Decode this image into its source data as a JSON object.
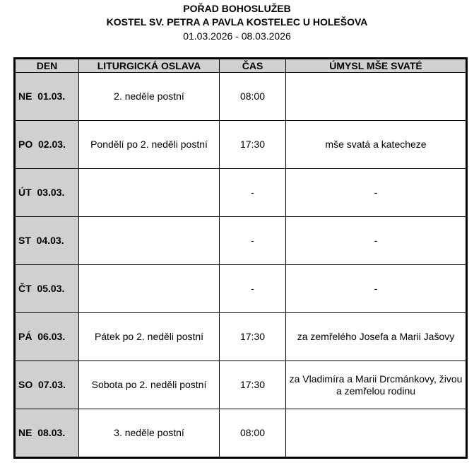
{
  "header": {
    "title": "POŘAD BOHOSLUŽEB",
    "church": "KOSTEL SV. PETRA A PAVLA KOSTELEC U HOLEŠOVA",
    "range": "01.03.2026 - 08.03.2026"
  },
  "table": {
    "columns": [
      "DEN",
      "LITURGICKÁ OSLAVA",
      "ČAS",
      "ÚMYSL MŠE SVATÉ"
    ],
    "rows": [
      {
        "day": "NE  01.03.",
        "celebration": "2. neděle postní",
        "time": "08:00",
        "intention": ""
      },
      {
        "day": "PO  02.03.",
        "celebration": "Pondělí po 2. neděli postní",
        "time": "17:30",
        "intention": "mše svatá a katecheze"
      },
      {
        "day": "ÚT  03.03.",
        "celebration": "",
        "time": "-",
        "intention": "-"
      },
      {
        "day": "ST  04.03.",
        "celebration": "",
        "time": "-",
        "intention": "-"
      },
      {
        "day": "ČT  05.03.",
        "celebration": "",
        "time": "-",
        "intention": "-"
      },
      {
        "day": "PÁ  06.03.",
        "celebration": "Pátek po 2. neděli postní",
        "time": "17:30",
        "intention": "za zemřelého Josefa a Marii Jašovy"
      },
      {
        "day": "SO  07.03.",
        "celebration": "Sobota po 2. neděli postní",
        "time": "17:30",
        "intention": "za Vladimíra a Marii Drcmánkovy, živou a zemřelou rodinu"
      },
      {
        "day": "NE  08.03.",
        "celebration": "3. neděle postní",
        "time": "08:00",
        "intention": ""
      }
    ]
  }
}
